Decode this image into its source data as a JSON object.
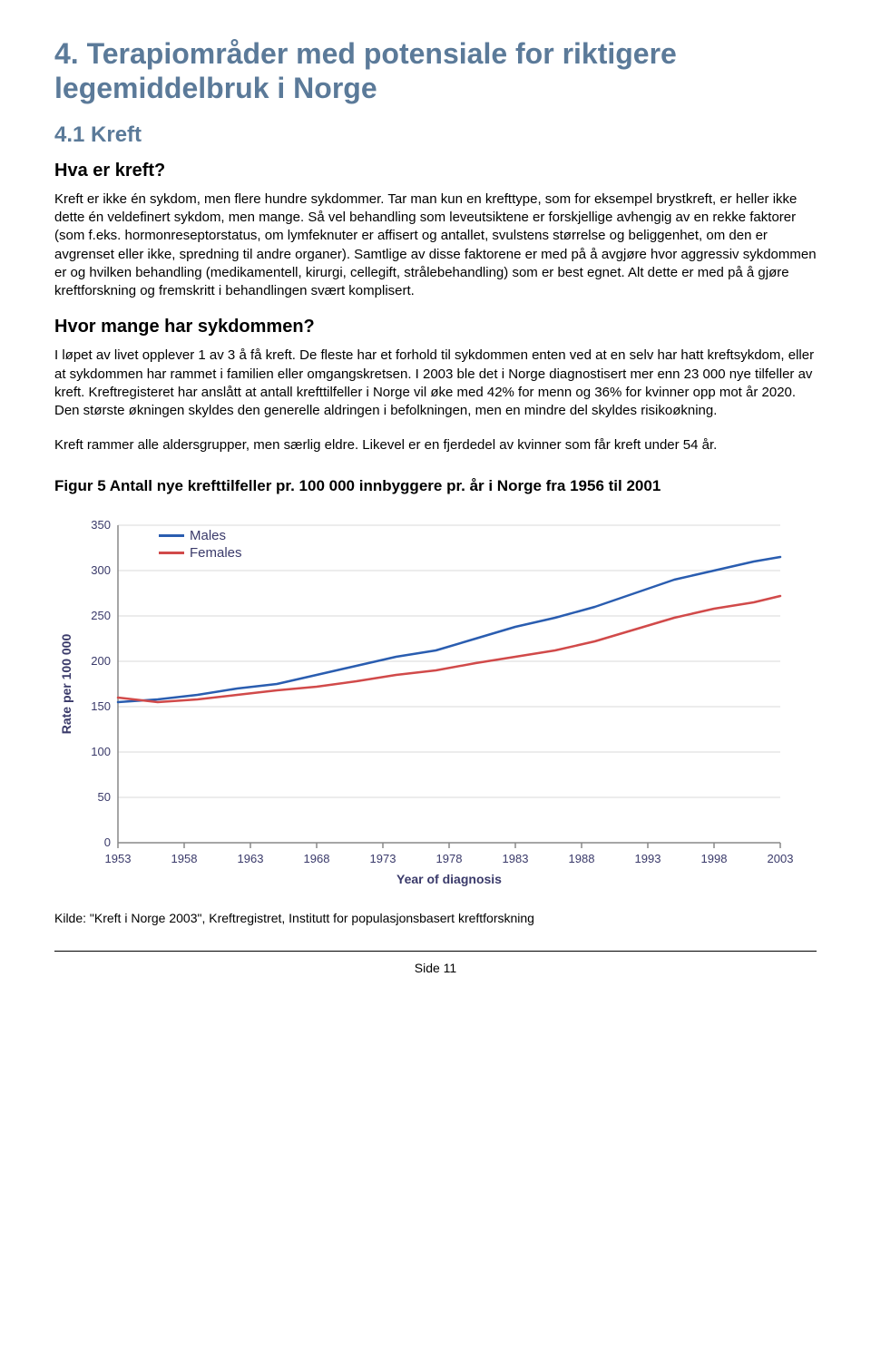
{
  "heading": "4. Terapiområder med potensiale for riktigere legemiddelbruk i Norge",
  "sub1": "4.1 Kreft",
  "q1_title": "Hva er kreft?",
  "q1_body": "Kreft er ikke én sykdom, men flere hundre sykdommer. Tar man kun en krefttype, som for eksempel brystkreft, er heller ikke dette én veldefinert sykdom, men mange. Så vel behandling som leveutsiktene er forskjellige avhengig av en rekke faktorer (som f.eks. hormonreseptorstatus, om lymfeknuter er affisert og antallet, svulstens størrelse og beliggenhet, om den er avgrenset eller ikke, spredning til andre organer). Samtlige av disse faktorene er med på å avgjøre hvor aggressiv sykdommen er og hvilken behandling (medikamentell, kirurgi, cellegift, strålebehandling) som er best egnet. Alt dette er med på å gjøre kreftforskning og fremskritt i behandlingen svært komplisert.",
  "q2_title": "Hvor mange har sykdommen?",
  "q2_body1": "I løpet av livet opplever 1 av 3 å få kreft. De fleste har et forhold til sykdommen enten ved at en selv har hatt kreftsykdom, eller at sykdommen har rammet i familien eller omgangskretsen. I 2003 ble det i Norge diagnostisert mer enn 23 000 nye tilfeller av kreft. Kreftregisteret har anslått at antall krefttilfeller i Norge vil øke med 42% for menn og 36% for kvinner opp mot år 2020. Den største økningen skyldes den generelle aldringen i befolkningen, men en mindre del skyldes risikoøkning.",
  "q2_body2": "Kreft rammer alle aldersgrupper, men særlig eldre. Likevel er en fjerdedel av kvinner som får kreft under 54 år.",
  "figure_title": "Figur 5 Antall nye krefttilfeller pr. 100 000 innbyggere pr. år i Norge fra 1956 til 2001",
  "chart": {
    "type": "line",
    "ylabel": "Rate per 100 000",
    "xlabel": "Year of diagnosis",
    "ylim": [
      0,
      350
    ],
    "ytick_step": 50,
    "xlim": [
      1953,
      2003
    ],
    "xtick_step": 5,
    "xticks": [
      1953,
      1958,
      1963,
      1968,
      1973,
      1978,
      1983,
      1988,
      1993,
      1998,
      2003
    ],
    "yticks": [
      0,
      50,
      100,
      150,
      200,
      250,
      300,
      350
    ],
    "background_color": "#ffffff",
    "grid_color": "#d8d8d8",
    "axis_color": "#888888",
    "label_color": "#3a3a6a",
    "label_fontsize": 14,
    "tick_fontsize": 13,
    "line_width": 2.5,
    "series": [
      {
        "name": "Males",
        "color": "#2a5db0",
        "years": [
          1953,
          1956,
          1959,
          1962,
          1965,
          1968,
          1971,
          1974,
          1977,
          1980,
          1983,
          1986,
          1989,
          1992,
          1995,
          1998,
          2001,
          2003
        ],
        "values": [
          155,
          158,
          163,
          170,
          175,
          185,
          195,
          205,
          212,
          225,
          238,
          248,
          260,
          275,
          290,
          300,
          310,
          315
        ]
      },
      {
        "name": "Females",
        "color": "#d14a4a",
        "years": [
          1953,
          1956,
          1959,
          1962,
          1965,
          1968,
          1971,
          1974,
          1977,
          1980,
          1983,
          1986,
          1989,
          1992,
          1995,
          1998,
          2001,
          2003
        ],
        "values": [
          160,
          155,
          158,
          163,
          168,
          172,
          178,
          185,
          190,
          198,
          205,
          212,
          222,
          235,
          248,
          258,
          265,
          272
        ]
      }
    ],
    "legend": {
      "males": "Males",
      "females": "Females"
    }
  },
  "source": "Kilde: \"Kreft i Norge 2003\", Kreftregistret, Institutt for populasjonsbasert kreftforskning",
  "page_footer": "Side 11"
}
